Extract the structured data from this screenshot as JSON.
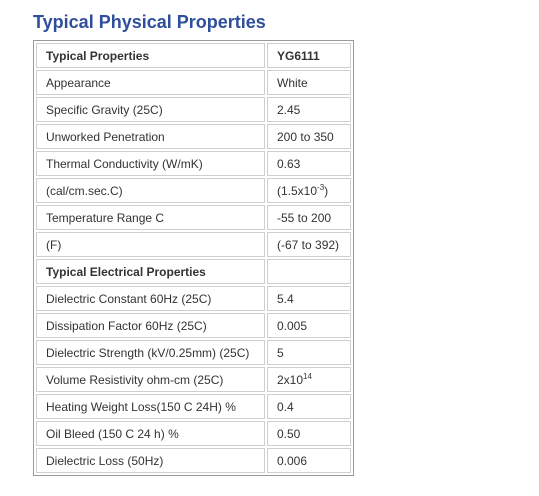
{
  "title": "Typical Physical Properties",
  "table": {
    "header": [
      "Typical Properties",
      "YG6111"
    ],
    "rows": [
      [
        "Appearance",
        "White"
      ],
      [
        "Specific Gravity (25C)",
        "2.45"
      ],
      [
        "Unworked Penetration",
        "200 to 350"
      ],
      [
        "Thermal Conductivity (W/mK)",
        "0.63"
      ],
      [
        "(cal/cm.sec.C)",
        {
          "base": "(1.5x10",
          "sup": "-3",
          "after": ")"
        }
      ],
      [
        "Temperature Range C",
        "-55 to 200"
      ],
      [
        "(F)",
        "(-67 to 392)"
      ],
      [
        "Typical Electrical Properties"
      ],
      [
        "Dielectric Constant 60Hz (25C)",
        "5.4"
      ],
      [
        "Dissipation Factor 60Hz (25C)",
        "0.005"
      ],
      [
        "Dielectric Strength (kV/0.25mm) (25C)",
        "5"
      ],
      [
        "Volume Resistivity ohm-cm (25C)",
        {
          "base": "2x10",
          "sup": "14"
        }
      ],
      [
        "Heating Weight Loss(150 C 24H) %",
        "0.4"
      ],
      [
        "Oil Bleed (150 C 24 h) %",
        "0.50"
      ],
      [
        "Dielectric Loss (50Hz)",
        "0.006"
      ]
    ]
  }
}
